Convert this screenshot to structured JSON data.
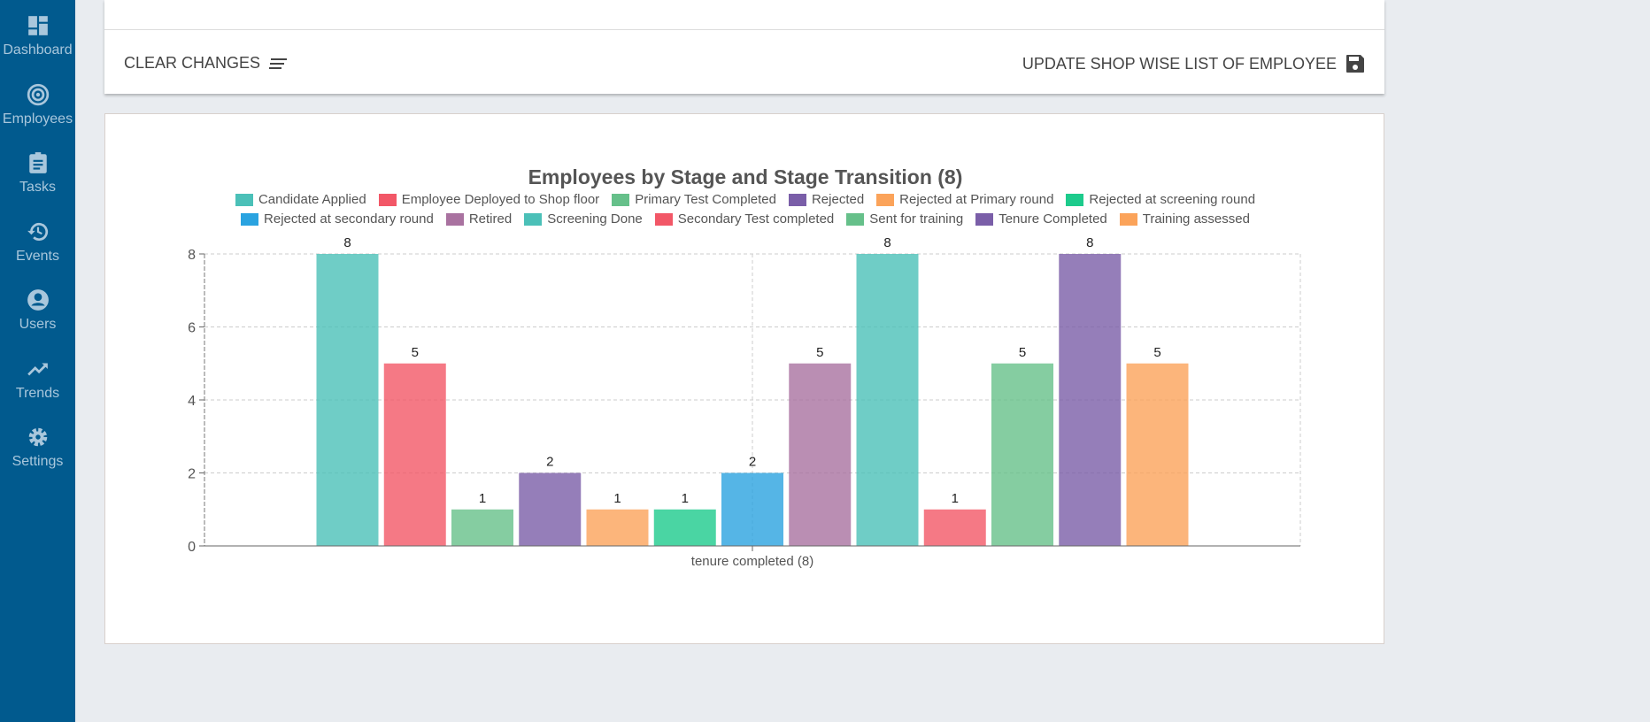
{
  "sidebar": {
    "items": [
      {
        "label": "Dashboard",
        "icon": "dashboard-icon"
      },
      {
        "label": "Employees",
        "icon": "radar-icon"
      },
      {
        "label": "Tasks",
        "icon": "clipboard-icon"
      },
      {
        "label": "Events",
        "icon": "history-icon"
      },
      {
        "label": "Users",
        "icon": "user-circle-icon"
      },
      {
        "label": "Trends",
        "icon": "trending-up-icon"
      },
      {
        "label": "Settings",
        "icon": "gear-icon"
      }
    ]
  },
  "toolbar": {
    "clear_label": "CLEAR CHANGES",
    "update_label": "UPDATE SHOP WISE LIST OF EMPLOYEE"
  },
  "chart_data": {
    "type": "bar",
    "title": "Employees by Stage and Stage Transition (8)",
    "categories": [
      "tenure completed (8)"
    ],
    "ylim": [
      0,
      8
    ],
    "yticks": [
      0,
      2,
      4,
      6,
      8
    ],
    "grid": true,
    "legend_placement": "top",
    "series": [
      {
        "name": "Candidate Applied",
        "values": [
          8
        ],
        "color": "#4bc0b8"
      },
      {
        "name": "Employee Deployed to Shop floor",
        "values": [
          5
        ],
        "color": "#f25767"
      },
      {
        "name": "Primary Test Completed",
        "values": [
          1
        ],
        "color": "#66c08a"
      },
      {
        "name": "Rejected",
        "values": [
          2
        ],
        "color": "#7a5ea8"
      },
      {
        "name": "Rejected at Primary round",
        "values": [
          1
        ],
        "color": "#fba35a"
      },
      {
        "name": "Rejected at screening round",
        "values": [
          1
        ],
        "color": "#1dcb8c"
      },
      {
        "name": "Rejected at secondary round",
        "values": [
          2
        ],
        "color": "#2aa3e0"
      },
      {
        "name": "Retired",
        "values": [
          5
        ],
        "color": "#a972a0"
      },
      {
        "name": "Screening Done",
        "values": [
          8
        ],
        "color": "#4bc0b8"
      },
      {
        "name": "Secondary Test completed",
        "values": [
          1
        ],
        "color": "#f25767"
      },
      {
        "name": "Sent for training",
        "values": [
          5
        ],
        "color": "#66c08a"
      },
      {
        "name": "Tenure Completed",
        "values": [
          8
        ],
        "color": "#7a5ea8"
      },
      {
        "name": "Training assessed",
        "values": [
          5
        ],
        "color": "#fba35a"
      }
    ]
  }
}
